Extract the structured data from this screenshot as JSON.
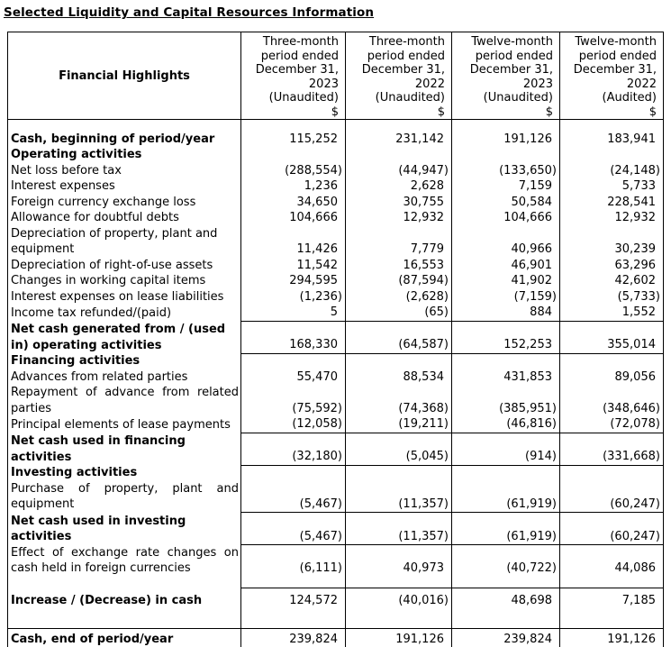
{
  "page_title": "Selected Liquidity and Capital Resources Information",
  "table": {
    "corner_header": "Financial Highlights",
    "column_headers": [
      {
        "text": "Three-month\nperiod ended\nDecember 31,\n2023\n(Unaudited)\n$"
      },
      {
        "text": "Three-month\nperiod ended\nDecember 31,\n2022\n(Unaudited)\n$"
      },
      {
        "text": "Twelve-month\nperiod ended\nDecember 31,\n2023\n(Unaudited)\n$"
      },
      {
        "text": "Twelve-month\nperiod ended\nDecember 31,\n2022\n(Audited)\n$"
      }
    ],
    "rows": [
      {
        "kind": "spacer",
        "label": "",
        "values": [
          "",
          "",
          "",
          ""
        ]
      },
      {
        "kind": "bold",
        "label": "Cash, beginning of period/year",
        "values": [
          "115,252",
          "231,142",
          "191,126",
          "183,941"
        ]
      },
      {
        "kind": "section",
        "label": "Operating activities",
        "values": [
          "",
          "",
          "",
          ""
        ]
      },
      {
        "kind": "item",
        "label": "Net loss before tax",
        "values": [
          "(288,554)",
          "(44,947)",
          "(133,650)",
          "(24,148)"
        ]
      },
      {
        "kind": "item",
        "label": "Interest expenses",
        "values": [
          "1,236",
          "2,628",
          "7,159",
          "5,733"
        ]
      },
      {
        "kind": "item",
        "label": "Foreign currency exchange loss",
        "values": [
          "34,650",
          "30,755",
          "50,584",
          "228,541"
        ]
      },
      {
        "kind": "item",
        "label": "Allowance for doubtful debts",
        "values": [
          "104,666",
          "12,932",
          "104,666",
          "12,932"
        ]
      },
      {
        "kind": "item",
        "label": "Depreciation of property, plant and equipment",
        "values": [
          "11,426",
          "7,779",
          "40,966",
          "30,239"
        ]
      },
      {
        "kind": "item",
        "label": "Depreciation of right-of-use assets",
        "values": [
          "11,542",
          "16,553",
          "46,901",
          "63,296"
        ]
      },
      {
        "kind": "item",
        "label": "Changes in working capital items",
        "values": [
          "294,595",
          "(87,594)",
          "41,902",
          "42,602"
        ]
      },
      {
        "kind": "item",
        "label": "Interest expenses on lease liabilities",
        "values": [
          "(1,236)",
          "(2,628)",
          "(7,159)",
          "(5,733)"
        ]
      },
      {
        "kind": "item",
        "label": "Income tax refunded/(paid)",
        "values": [
          "5",
          "(65)",
          "884",
          "1,552"
        ]
      },
      {
        "kind": "subtotal",
        "label": "Net cash generated from / (used in) operating activities",
        "values": [
          "168,330",
          "(64,587)",
          "152,253",
          "355,014"
        ]
      },
      {
        "kind": "section",
        "label": "Financing activities",
        "values": [
          "",
          "",
          "",
          ""
        ]
      },
      {
        "kind": "item",
        "label": "Advances from related parties",
        "values": [
          "55,470",
          "88,534",
          "431,853",
          "89,056"
        ]
      },
      {
        "kind": "justify",
        "label": "Repayment of advance from related parties",
        "values": [
          "(75,592)",
          "(74,368)",
          "(385,951)",
          "(348,646)"
        ]
      },
      {
        "kind": "item",
        "label": "Principal elements of lease payments",
        "values": [
          "(12,058)",
          "(19,211)",
          "(46,816)",
          "(72,078)"
        ]
      },
      {
        "kind": "subtotal",
        "label": "Net cash used in financing activities",
        "values": [
          "(32,180)",
          "(5,045)",
          "(914)",
          "(331,668)"
        ]
      },
      {
        "kind": "section",
        "label": "Investing activities",
        "values": [
          "",
          "",
          "",
          ""
        ]
      },
      {
        "kind": "justify",
        "label": "Purchase of property, plant and equipment",
        "values": [
          "(5,467)",
          "(11,357)",
          "(61,919)",
          "(60,247)"
        ]
      },
      {
        "kind": "subtotal",
        "label": "Net cash used in investing activities",
        "values": [
          "(5,467)",
          "(11,357)",
          "(61,919)",
          "(60,247)"
        ]
      },
      {
        "kind": "justify",
        "label": "Effect of exchange rate changes on cash held in foreign currencies",
        "values": [
          "(6,111)",
          "40,973",
          "(40,722)",
          "44,086"
        ]
      },
      {
        "kind": "spacer",
        "label": "",
        "values": [
          "",
          "",
          "",
          ""
        ]
      },
      {
        "kind": "increase",
        "label": "Increase / (Decrease) in cash",
        "values": [
          "124,572",
          "(40,016)",
          "48,698",
          "7,185"
        ]
      },
      {
        "kind": "spacer-md",
        "label": "",
        "values": [
          "",
          "",
          "",
          ""
        ]
      },
      {
        "kind": "total",
        "label": "Cash, end of period/year",
        "values": [
          "239,824",
          "191,126",
          "239,824",
          "191,126"
        ]
      }
    ]
  }
}
